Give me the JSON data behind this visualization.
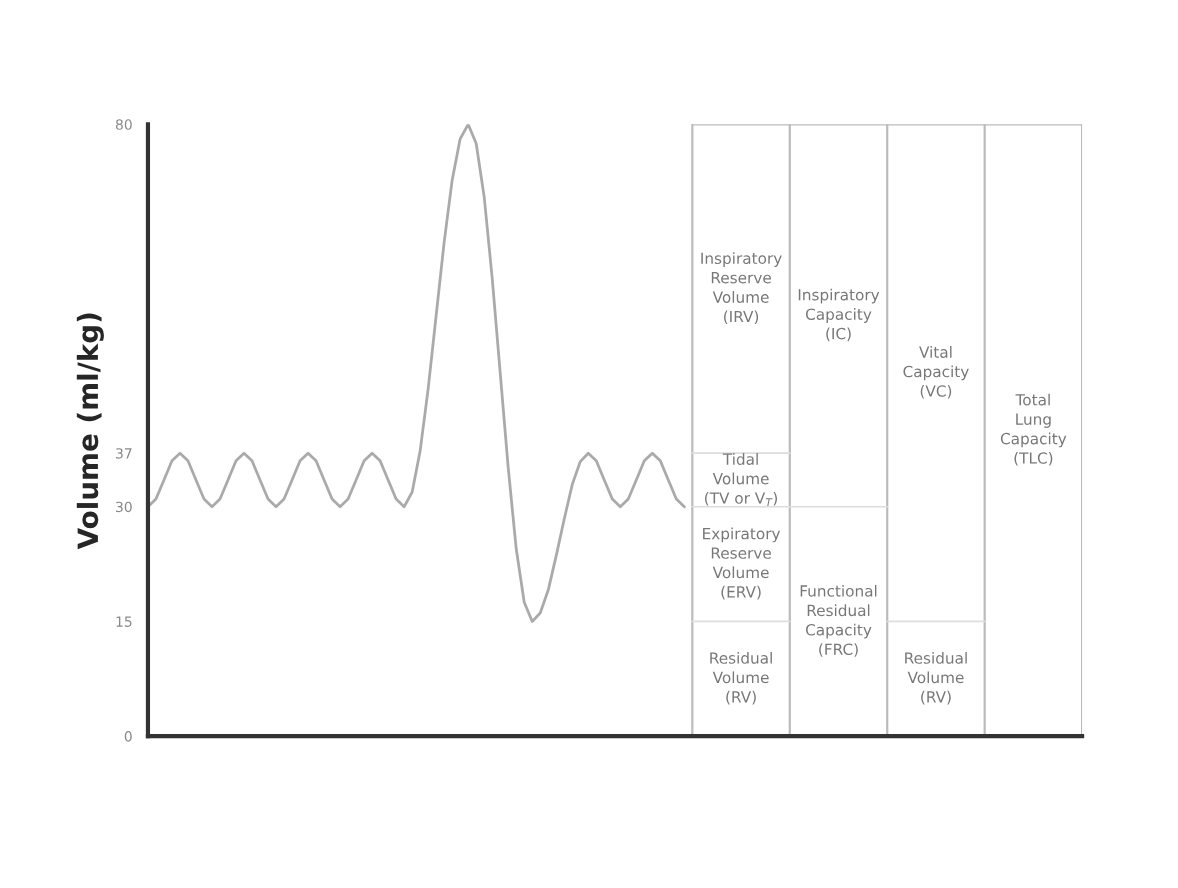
{
  "chart_data": {
    "type": "line",
    "ylabel": "Volume (ml/kg)",
    "categories": [
      null,
      null,
      null,
      null,
      null,
      null,
      null,
      null,
      null,
      null,
      null,
      null,
      null,
      null,
      null,
      null,
      null,
      null,
      null,
      null,
      null,
      null,
      null,
      null,
      null,
      null,
      null,
      null,
      null,
      null,
      null,
      null,
      null,
      null,
      null,
      null,
      null,
      null,
      null,
      null,
      null,
      null,
      null,
      null,
      null,
      null,
      null,
      null,
      null,
      null,
      null,
      null,
      null,
      null,
      null,
      null,
      null,
      null,
      null,
      null,
      null,
      null,
      null,
      null,
      null,
      null,
      null,
      null
    ],
    "series": [
      {
        "color": "#aaaaaa",
        "values": [
          30,
          31.0,
          33.5,
          36.0,
          37,
          36.0,
          33.5,
          31.0,
          30,
          31.0,
          33.5,
          36.0,
          37,
          36.0,
          33.5,
          31.0,
          30,
          31.0,
          33.5,
          36.0,
          37,
          36.0,
          33.5,
          31.0,
          30,
          31.0,
          33.5,
          36.0,
          37,
          36.0,
          33.5,
          31.0,
          30,
          31.9,
          37.3,
          45.4,
          55,
          64.6,
          72.7,
          78.1,
          80,
          77.5,
          70.5,
          59.9,
          47.5,
          35.1,
          24.5,
          17.5,
          15,
          16.1,
          19.1,
          23.6,
          28.4,
          32.9,
          35.9,
          37,
          36.0,
          33.5,
          31.0,
          30,
          31.0,
          33.5,
          36.0,
          37,
          36.0,
          33.5,
          31.0,
          30
        ]
      }
    ],
    "ylim": [
      0,
      80
    ],
    "yticks": [
      0,
      15,
      30,
      37,
      80
    ],
    "grid": false,
    "legend": false,
    "annotations": [
      "Inspiratory\nReserve\nVolume\n(IRV)",
      "Tidal\nVolume\n(TV or V$_{T}$)",
      "Expiratory\nReserve\nVolume\n(ERV)",
      "Residual\nVolume\n(RV)",
      "Inspiratory\nCapacity\n(IC)",
      "Functional\nResidual\nCapacity\n(FRC)",
      "Vital\nCapacity\n(VC)",
      "Residual\nVolume\n(RV)",
      "Total\nLung\nCapacity\n(TLC)"
    ]
  }
}
